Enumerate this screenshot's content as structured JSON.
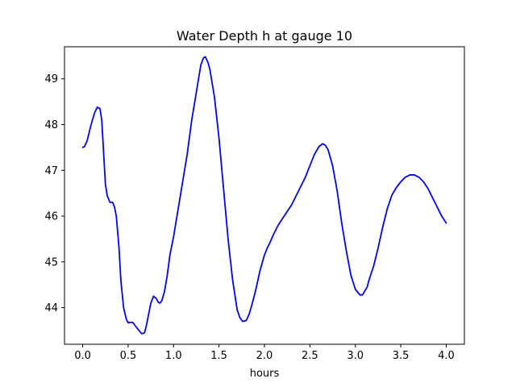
{
  "chart_data": {
    "type": "line",
    "title": "Water Depth h at gauge 10",
    "xlabel": "hours",
    "ylabel": "",
    "xlim": [
      -0.2,
      4.2
    ],
    "ylim": [
      43.2,
      49.7
    ],
    "xticks": [
      0.0,
      0.5,
      1.0,
      1.5,
      2.0,
      2.5,
      3.0,
      3.5,
      4.0
    ],
    "xtick_labels": [
      "0.0",
      "0.5",
      "1.0",
      "1.5",
      "2.0",
      "2.5",
      "3.0",
      "3.5",
      "4.0"
    ],
    "yticks": [
      44,
      45,
      46,
      47,
      48,
      49
    ],
    "ytick_labels": [
      "44",
      "45",
      "46",
      "47",
      "48",
      "49"
    ],
    "grid": false,
    "series": [
      {
        "color": "#0000ff",
        "x": [
          0.0,
          0.02,
          0.05,
          0.08,
          0.1,
          0.13,
          0.16,
          0.19,
          0.21,
          0.23,
          0.25,
          0.27,
          0.3,
          0.33,
          0.35,
          0.37,
          0.4,
          0.42,
          0.45,
          0.48,
          0.5,
          0.53,
          0.55,
          0.6,
          0.62,
          0.65,
          0.68,
          0.7,
          0.72,
          0.75,
          0.78,
          0.81,
          0.83,
          0.85,
          0.87,
          0.9,
          0.93,
          0.96,
          1.0,
          1.05,
          1.1,
          1.15,
          1.2,
          1.25,
          1.3,
          1.33,
          1.35,
          1.38,
          1.4,
          1.45,
          1.5,
          1.55,
          1.6,
          1.65,
          1.7,
          1.73,
          1.76,
          1.8,
          1.83,
          1.86,
          1.9,
          1.95,
          2.0,
          2.03,
          2.06,
          2.1,
          2.15,
          2.2,
          2.25,
          2.3,
          2.35,
          2.4,
          2.45,
          2.5,
          2.55,
          2.6,
          2.64,
          2.67,
          2.7,
          2.75,
          2.8,
          2.85,
          2.9,
          2.95,
          3.0,
          3.05,
          3.08,
          3.1,
          3.13,
          3.15,
          3.2,
          3.25,
          3.3,
          3.35,
          3.4,
          3.45,
          3.5,
          3.55,
          3.6,
          3.65,
          3.7,
          3.75,
          3.8,
          3.85,
          3.9,
          3.95,
          4.0
        ],
        "y": [
          47.5,
          47.52,
          47.65,
          47.9,
          48.05,
          48.25,
          48.38,
          48.35,
          48.1,
          47.4,
          46.7,
          46.45,
          46.3,
          46.3,
          46.2,
          46.0,
          45.3,
          44.6,
          44.0,
          43.75,
          43.67,
          43.68,
          43.68,
          43.55,
          43.5,
          43.43,
          43.45,
          43.6,
          43.8,
          44.1,
          44.25,
          44.2,
          44.12,
          44.1,
          44.15,
          44.35,
          44.7,
          45.15,
          45.55,
          46.15,
          46.75,
          47.35,
          48.1,
          48.7,
          49.3,
          49.46,
          49.48,
          49.35,
          49.2,
          48.6,
          47.7,
          46.6,
          45.5,
          44.6,
          43.95,
          43.78,
          43.7,
          43.72,
          43.85,
          44.05,
          44.35,
          44.8,
          45.15,
          45.3,
          45.42,
          45.6,
          45.8,
          45.95,
          46.1,
          46.25,
          46.45,
          46.65,
          46.85,
          47.1,
          47.35,
          47.52,
          47.58,
          47.55,
          47.45,
          47.1,
          46.55,
          45.85,
          45.25,
          44.72,
          44.4,
          44.28,
          44.28,
          44.35,
          44.45,
          44.6,
          44.9,
          45.3,
          45.75,
          46.15,
          46.45,
          46.62,
          46.75,
          46.85,
          46.9,
          46.9,
          46.85,
          46.75,
          46.6,
          46.4,
          46.2,
          46.0,
          45.85
        ]
      }
    ]
  }
}
